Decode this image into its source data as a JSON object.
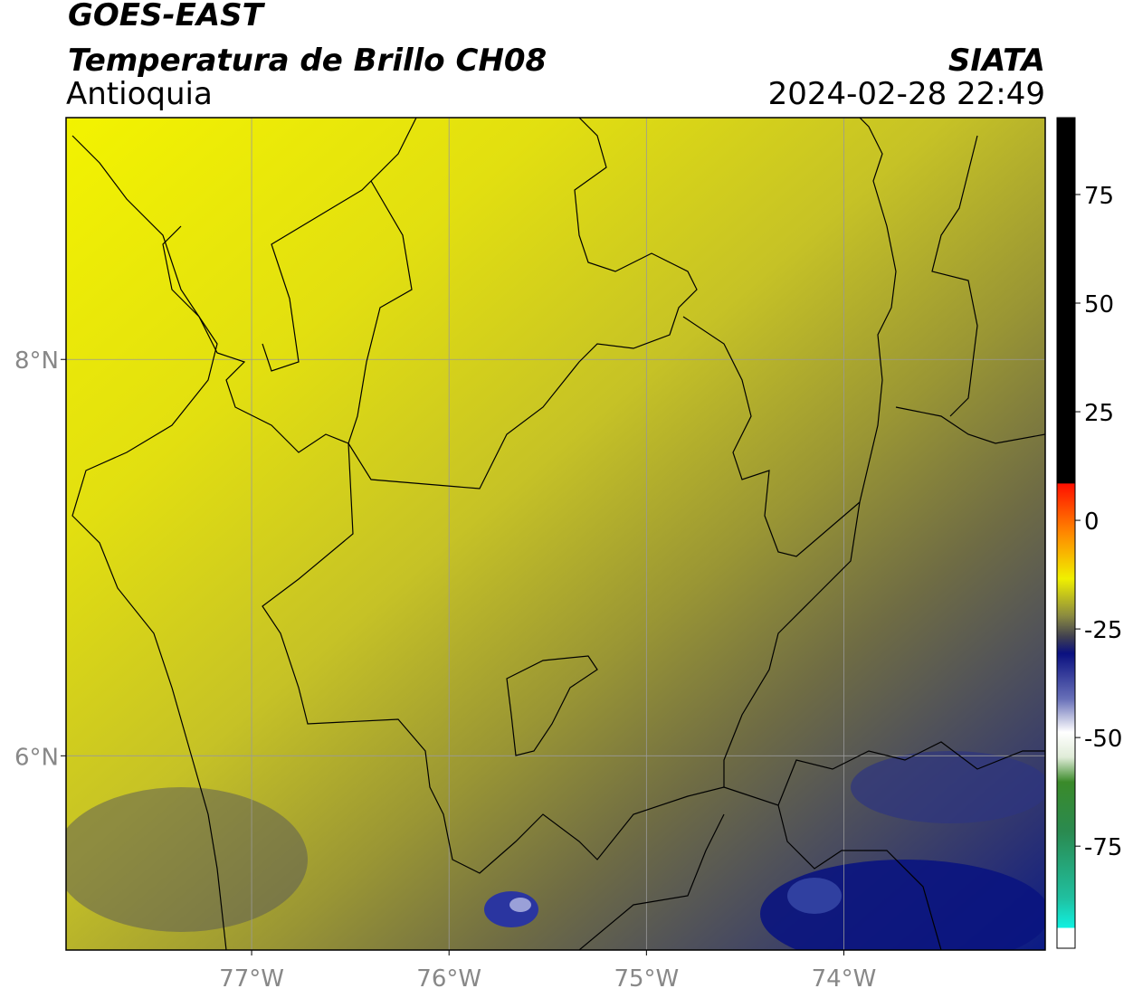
{
  "header": {
    "title": "GOES-EAST",
    "subtitle": "Temperatura de Brillo CH08",
    "region": "Antioquia",
    "source": "SIATA",
    "datetime": "2024-02-28 22:49"
  },
  "map": {
    "xlim": [
      -77.94,
      -72.98
    ],
    "ylim": [
      5.02,
      9.22
    ],
    "xticks": [
      {
        "value": -77,
        "label": "77°W"
      },
      {
        "value": -76,
        "label": "76°W"
      },
      {
        "value": -75,
        "label": "75°W"
      },
      {
        "value": -74,
        "label": "74°W"
      }
    ],
    "yticks": [
      {
        "value": 8,
        "label": "8°N"
      },
      {
        "value": 6,
        "label": "6°N"
      }
    ],
    "grid": true
  },
  "colorbar": {
    "lim": [
      -98.5,
      92.7
    ],
    "ticks": [
      75,
      50,
      25,
      0,
      -25,
      -50,
      -75
    ]
  }
}
